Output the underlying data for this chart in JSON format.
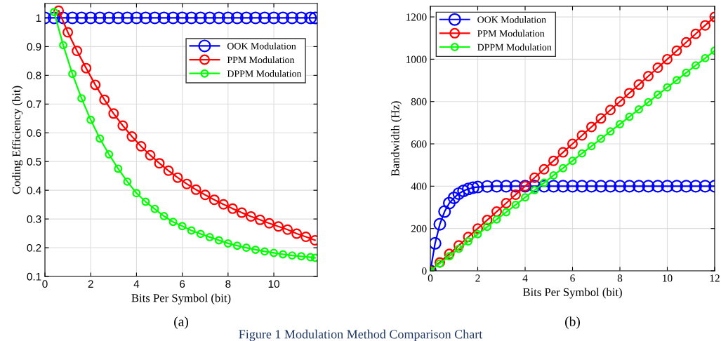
{
  "chart_data": [
    {
      "type": "line",
      "xlabel": "Bits Per Symbol (bit)",
      "ylabel": "Coding Efficiency (bit)",
      "xlim": [
        0,
        11.9
      ],
      "ylim": [
        0.1,
        1.05
      ],
      "xticks": [
        0,
        2,
        4,
        6,
        8,
        10
      ],
      "yticks": [
        0.1,
        0.2,
        0.3,
        0.4,
        0.5,
        0.6,
        0.7,
        0.8,
        0.9,
        1
      ],
      "grid": true,
      "legend": "top right",
      "marker": "circle",
      "line_style": "solid",
      "annotations": [
        "(a)",
        "Figure 1 Modulation Method Comparison Chart"
      ],
      "series": [
        {
          "name": "OOK Modulation",
          "color": "#0000ff",
          "x": [
            0,
            0.4,
            0.8,
            1.2,
            1.6,
            2.0,
            2.4,
            2.8,
            3.2,
            3.6,
            4.0,
            4.4,
            4.8,
            5.2,
            5.6,
            6.0,
            6.4,
            6.8,
            7.2,
            7.6,
            8.0,
            8.4,
            8.8,
            9.2,
            9.6,
            10.0,
            10.4,
            10.8,
            11.2,
            11.6,
            11.8
          ],
          "values": [
            1,
            1,
            1,
            1,
            1,
            1,
            1,
            1,
            1,
            1,
            1,
            1,
            1,
            1,
            1,
            1,
            1,
            1,
            1,
            1,
            1,
            1,
            1,
            1,
            1,
            1,
            1,
            1,
            1,
            1,
            1
          ]
        },
        {
          "name": "PPM Modulation",
          "color": "#ff0000",
          "x": [
            0.6,
            1.0,
            1.4,
            1.8,
            2.2,
            2.6,
            3.0,
            3.4,
            3.8,
            4.2,
            4.6,
            5.0,
            5.4,
            5.8,
            6.2,
            6.6,
            7.0,
            7.4,
            7.8,
            8.2,
            8.6,
            9.0,
            9.4,
            9.8,
            10.2,
            10.6,
            11.0,
            11.4,
            11.8
          ],
          "values": [
            1.025,
            0.95,
            0.885,
            0.825,
            0.767,
            0.715,
            0.667,
            0.625,
            0.587,
            0.553,
            0.522,
            0.494,
            0.468,
            0.444,
            0.422,
            0.402,
            0.384,
            0.367,
            0.351,
            0.336,
            0.322,
            0.309,
            0.297,
            0.285,
            0.274,
            0.263,
            0.249,
            0.238,
            0.226
          ]
        },
        {
          "name": "DPPM Modulation",
          "color": "#00ff00",
          "x": [
            0.4,
            0.8,
            1.2,
            1.6,
            2.0,
            2.4,
            2.8,
            3.2,
            3.6,
            4.0,
            4.4,
            4.8,
            5.2,
            5.6,
            6.0,
            6.4,
            6.8,
            7.2,
            7.6,
            8.0,
            8.4,
            8.8,
            9.2,
            9.6,
            10.0,
            10.4,
            10.8,
            11.2,
            11.6,
            11.8
          ],
          "values": [
            1.02,
            0.905,
            0.805,
            0.72,
            0.645,
            0.58,
            0.525,
            0.475,
            0.43,
            0.39,
            0.36,
            0.335,
            0.31,
            0.29,
            0.275,
            0.26,
            0.248,
            0.237,
            0.226,
            0.215,
            0.207,
            0.2,
            0.193,
            0.187,
            0.182,
            0.177,
            0.173,
            0.17,
            0.167,
            0.165
          ]
        }
      ]
    },
    {
      "type": "line",
      "xlabel": "Bits Per Symbol (bit)",
      "ylabel": "Bandwidth (Hz)",
      "xlim": [
        0,
        12
      ],
      "ylim": [
        0,
        1250
      ],
      "xticks": [
        0,
        2,
        4,
        6,
        8,
        10,
        12
      ],
      "yticks": [
        0,
        200,
        400,
        600,
        800,
        1000,
        1200
      ],
      "grid": true,
      "legend": "top left",
      "marker": "circle",
      "line_style": "solid",
      "annotations": [
        "(b)"
      ],
      "series": [
        {
          "name": "OOK Modulation",
          "color": "#0000ff",
          "x": [
            0,
            0.2,
            0.4,
            0.6,
            0.8,
            1.0,
            1.2,
            1.4,
            1.6,
            1.8,
            2.0,
            2.4,
            2.8,
            3.2,
            3.6,
            4.0,
            4.4,
            4.8,
            5.2,
            5.6,
            6.0,
            6.4,
            6.8,
            7.2,
            7.6,
            8.0,
            8.4,
            8.8,
            9.2,
            9.6,
            10.0,
            10.4,
            10.8,
            11.2,
            11.6,
            12.0
          ],
          "values": [
            0,
            130,
            220,
            280,
            320,
            345,
            365,
            378,
            387,
            393,
            396,
            399,
            400,
            400,
            400,
            400,
            400,
            400,
            400,
            400,
            400,
            400,
            400,
            400,
            400,
            400,
            400,
            400,
            400,
            400,
            400,
            400,
            400,
            400,
            400,
            400
          ]
        },
        {
          "name": "PPM Modulation",
          "color": "#ff0000",
          "x": [
            0,
            0.4,
            0.8,
            1.2,
            1.6,
            2.0,
            2.4,
            2.8,
            3.2,
            3.6,
            4.0,
            4.4,
            4.8,
            5.2,
            5.6,
            6.0,
            6.4,
            6.8,
            7.2,
            7.6,
            8.0,
            8.4,
            8.8,
            9.2,
            9.6,
            10.0,
            10.4,
            10.8,
            11.2,
            11.6,
            12.0
          ],
          "values": [
            0,
            40,
            80,
            120,
            160,
            200,
            240,
            280,
            320,
            360,
            400,
            440,
            480,
            520,
            560,
            600,
            640,
            680,
            720,
            760,
            800,
            840,
            880,
            920,
            960,
            1000,
            1040,
            1080,
            1120,
            1160,
            1200
          ]
        },
        {
          "name": "DPPM Modulation",
          "color": "#00ff00",
          "x": [
            0,
            0.4,
            0.8,
            1.2,
            1.6,
            2.0,
            2.4,
            2.8,
            3.2,
            3.6,
            4.0,
            4.4,
            4.8,
            5.2,
            5.6,
            6.0,
            6.4,
            6.8,
            7.2,
            7.6,
            8.0,
            8.4,
            8.8,
            9.2,
            9.6,
            10.0,
            10.4,
            10.8,
            11.2,
            11.6,
            12.0
          ],
          "values": [
            0,
            35,
            69,
            104,
            139,
            173,
            208,
            243,
            277,
            312,
            347,
            381,
            416,
            451,
            485,
            520,
            555,
            589,
            624,
            659,
            693,
            728,
            763,
            797,
            832,
            867,
            901,
            936,
            971,
            1005,
            1040
          ]
        }
      ]
    }
  ]
}
